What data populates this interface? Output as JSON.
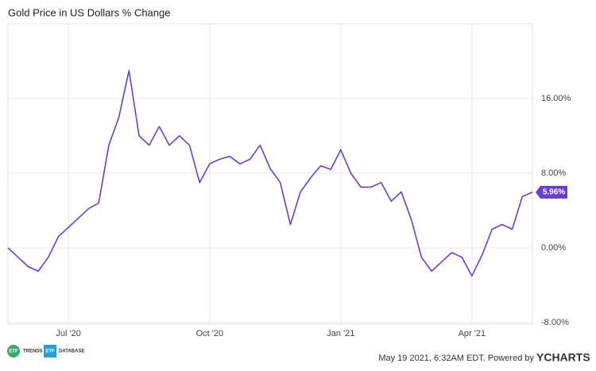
{
  "chart_data": {
    "type": "line",
    "title": "Gold Price in US Dollars % Change",
    "categories": [
      null,
      null,
      null,
      null,
      null,
      null,
      "Jul '20",
      null,
      null,
      null,
      null,
      null,
      null,
      null,
      null,
      null,
      null,
      null,
      null,
      null,
      "Oct '20",
      null,
      null,
      null,
      null,
      null,
      null,
      null,
      null,
      null,
      null,
      null,
      null,
      "Jan '21",
      null,
      null,
      null,
      null,
      null,
      null,
      null,
      null,
      null,
      null,
      null,
      null,
      "Apr '21",
      null,
      null,
      null,
      null,
      null,
      null
    ],
    "values": [
      0,
      -1,
      -2,
      -2.5,
      -1,
      1.2,
      2.2,
      3.2,
      4.2,
      4.8,
      11,
      14,
      19,
      12,
      11,
      13,
      11,
      12,
      11,
      7,
      9,
      9.5,
      9.8,
      9,
      9.5,
      11,
      8.5,
      7,
      2.5,
      6,
      7.5,
      8.8,
      8.4,
      10.5,
      8,
      6.5,
      6.5,
      7,
      5,
      6,
      3,
      -1,
      -2.5,
      -1.5,
      -0.5,
      -1,
      -3,
      -0.8,
      2,
      2.5,
      2,
      5.5,
      5.96
    ],
    "value_labels": [
      null,
      null,
      null,
      null,
      null,
      null,
      null,
      null,
      null,
      null,
      null,
      null,
      null,
      null,
      null,
      null,
      null,
      null,
      null,
      null,
      null,
      null,
      null,
      null,
      null,
      null,
      null,
      null,
      null,
      null,
      null,
      null,
      null,
      null,
      null,
      null,
      null,
      null,
      null,
      null,
      null,
      null,
      null,
      null,
      null,
      null,
      null,
      null,
      null,
      null,
      null,
      null,
      "5.96%"
    ],
    "color": "#6a3fd0",
    "ylim": [
      -8,
      24
    ],
    "yticks": [
      {
        "value": -8,
        "label": "-8.00%"
      },
      {
        "value": 0,
        "label": "0.00%"
      },
      {
        "value": 8,
        "label": "8.00%"
      },
      {
        "value": 16,
        "label": "16.00%"
      }
    ],
    "grid": true
  },
  "footer": {
    "logos": [
      {
        "icon": "ETF",
        "text": "TRENDS"
      },
      {
        "icon": "ETF",
        "text": "DATABASE"
      }
    ],
    "timestamp": "May 19 2021, 6:32AM EDT. Powered by",
    "brand": "YCHARTS"
  }
}
